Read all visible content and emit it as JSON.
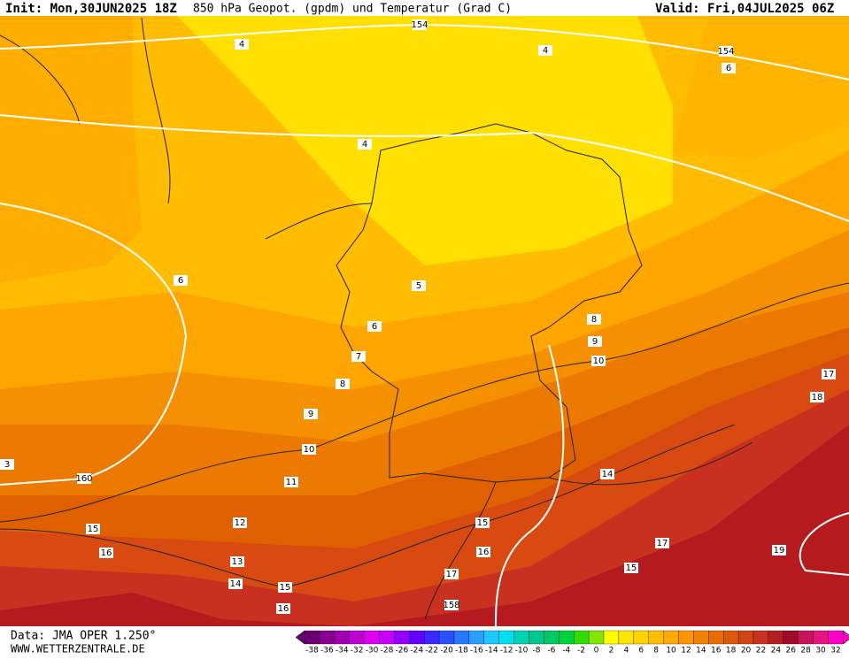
{
  "header": {
    "init": "Init: Mon,30JUN2025 18Z",
    "title": "850 hPa Geopot. (gpdm) und Temperatur (Grad C)",
    "valid": "Valid: Fri,04JUL2025 06Z"
  },
  "contour_labels": [
    154,
    4,
    4,
    154,
    6,
    4,
    6,
    5,
    6,
    8,
    9,
    10,
    7,
    8,
    17,
    18,
    9,
    10,
    14,
    11,
    160,
    3,
    12,
    15,
    15,
    16,
    16,
    17,
    19,
    13,
    15,
    17,
    14,
    15,
    16,
    158
  ],
  "color_scale": {
    "labels": [
      -38,
      -36,
      -34,
      -32,
      -30,
      -28,
      -26,
      -24,
      -22,
      -20,
      -18,
      -16,
      -14,
      -12,
      -10,
      -8,
      -6,
      -4,
      -2,
      0,
      2,
      4,
      6,
      8,
      10,
      12,
      14,
      16,
      18,
      20,
      22,
      24,
      26,
      28,
      30,
      32
    ],
    "colors": [
      "#6a0070",
      "#8a0090",
      "#a000b0",
      "#c000d0",
      "#e000f0",
      "#c800ff",
      "#9600ff",
      "#6400ff",
      "#3c28ff",
      "#2850ff",
      "#2878ff",
      "#28a0ff",
      "#1ec8ff",
      "#00e0f0",
      "#00d2b4",
      "#00c88c",
      "#00c864",
      "#00d23c",
      "#32dc00",
      "#82e600",
      "#ffff00",
      "#ffe600",
      "#ffd200",
      "#ffbe00",
      "#ffaa00",
      "#ff9600",
      "#f08200",
      "#e66e00",
      "#dc5a0a",
      "#d24614",
      "#c8321e",
      "#b41e1e",
      "#a00a28",
      "#c8145a",
      "#e6147d",
      "#ff00c8"
    ]
  },
  "footer": {
    "data": "Data: JMA OPER 1.250°",
    "site": "WWW.WETTERZENTRALE.DE"
  }
}
